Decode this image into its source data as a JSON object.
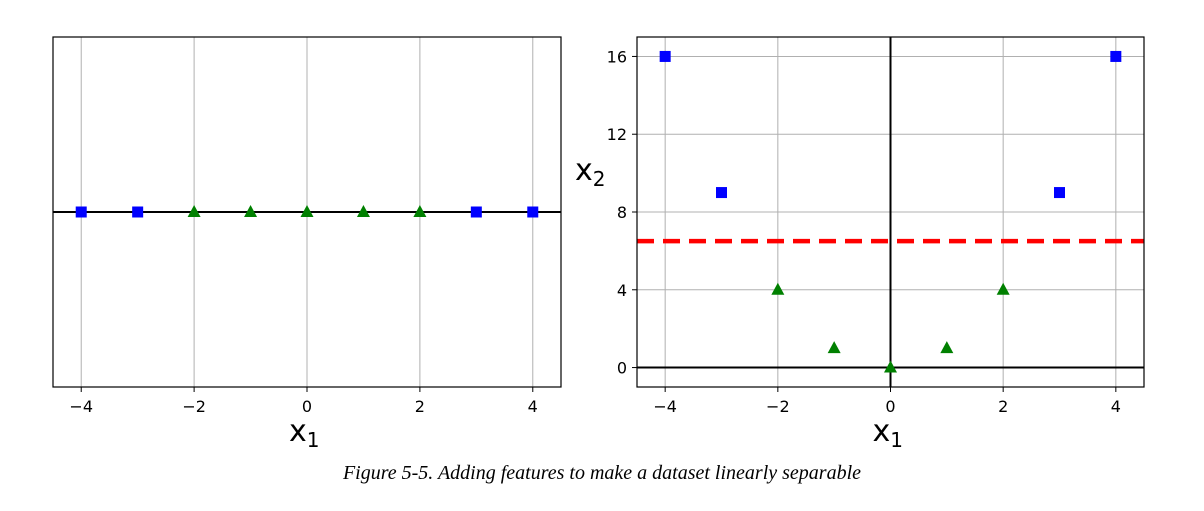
{
  "figure": {
    "caption": "Figure 5-5. Adding features to make a dataset linearly separable"
  },
  "colors": {
    "square": "#0000ff",
    "triangle": "#008000",
    "grid": "#b0b0b0",
    "separator": "#ff0000"
  },
  "chart_data": [
    {
      "type": "scatter",
      "xlabel": "x",
      "xlabel_sub": "1",
      "xlim": [
        -4.5,
        4.5
      ],
      "x_ticks": [
        "−4",
        "−2",
        "0",
        "2",
        "4"
      ],
      "x_tick_values": [
        -4,
        -2,
        0,
        2,
        4
      ],
      "grid": true,
      "axis_line_y": 0,
      "series": [
        {
          "marker": "square",
          "x": [
            -4,
            -3,
            3,
            4
          ],
          "y": [
            0,
            0,
            0,
            0
          ]
        },
        {
          "marker": "triangle",
          "x": [
            -2,
            -1,
            0,
            1,
            2
          ],
          "y": [
            0,
            0,
            0,
            0,
            0
          ]
        }
      ]
    },
    {
      "type": "scatter",
      "xlabel": "x",
      "xlabel_sub": "1",
      "ylabel": "x",
      "ylabel_sub": "2",
      "xlim": [
        -4.5,
        4.5
      ],
      "ylim": [
        -1,
        17
      ],
      "x_ticks": [
        "−4",
        "−2",
        "0",
        "2",
        "4"
      ],
      "x_tick_values": [
        -4,
        -2,
        0,
        2,
        4
      ],
      "y_ticks": [
        "0",
        "4",
        "8",
        "12",
        "16"
      ],
      "y_tick_values": [
        0,
        4,
        8,
        12,
        16
      ],
      "grid": true,
      "series": [
        {
          "marker": "square",
          "x": [
            -4,
            -3,
            3,
            4
          ],
          "y": [
            16,
            9,
            9,
            16
          ]
        },
        {
          "marker": "triangle",
          "x": [
            -2,
            -1,
            0,
            1,
            2
          ],
          "y": [
            4,
            1,
            0,
            1,
            4
          ]
        }
      ],
      "separator": {
        "y": 6.5,
        "style": "dashed"
      }
    }
  ]
}
